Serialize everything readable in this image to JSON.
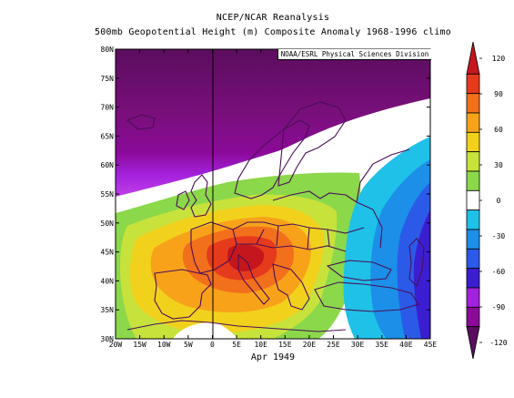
{
  "header": {
    "title": "NCEP/NCAR Reanalysis",
    "subtitle": "500mb Geopotential Height (m) Composite Anomaly 1968-1996 climo"
  },
  "credit": "NOAA/ESRL Physical Sciences Division",
  "period": "Apr 1949",
  "map": {
    "lon_labels": [
      "20W",
      "15W",
      "10W",
      "5W",
      "0",
      "5E",
      "10E",
      "15E",
      "20E",
      "25E",
      "30E",
      "35E",
      "40E",
      "45E"
    ],
    "lat_labels": [
      "30N",
      "35N",
      "40N",
      "45N",
      "50N",
      "55N",
      "60N",
      "65N",
      "70N",
      "75N",
      "80N"
    ]
  },
  "colorbar": {
    "tick_labels": [
      "120",
      "90",
      "60",
      "30",
      "0",
      "-30",
      "-60",
      "-90",
      "-120"
    ],
    "colors": [
      "#5a0d5e",
      "#8b0a99",
      "#a321dc",
      "#3c1ed1",
      "#2b5ae8",
      "#1c8fe8",
      "#1fc1e8",
      "#ffffff",
      "#8bd84a",
      "#c8e23c",
      "#f2d11c",
      "#f8a21a",
      "#f26f1c",
      "#e63a1c",
      "#c4161c"
    ]
  }
}
